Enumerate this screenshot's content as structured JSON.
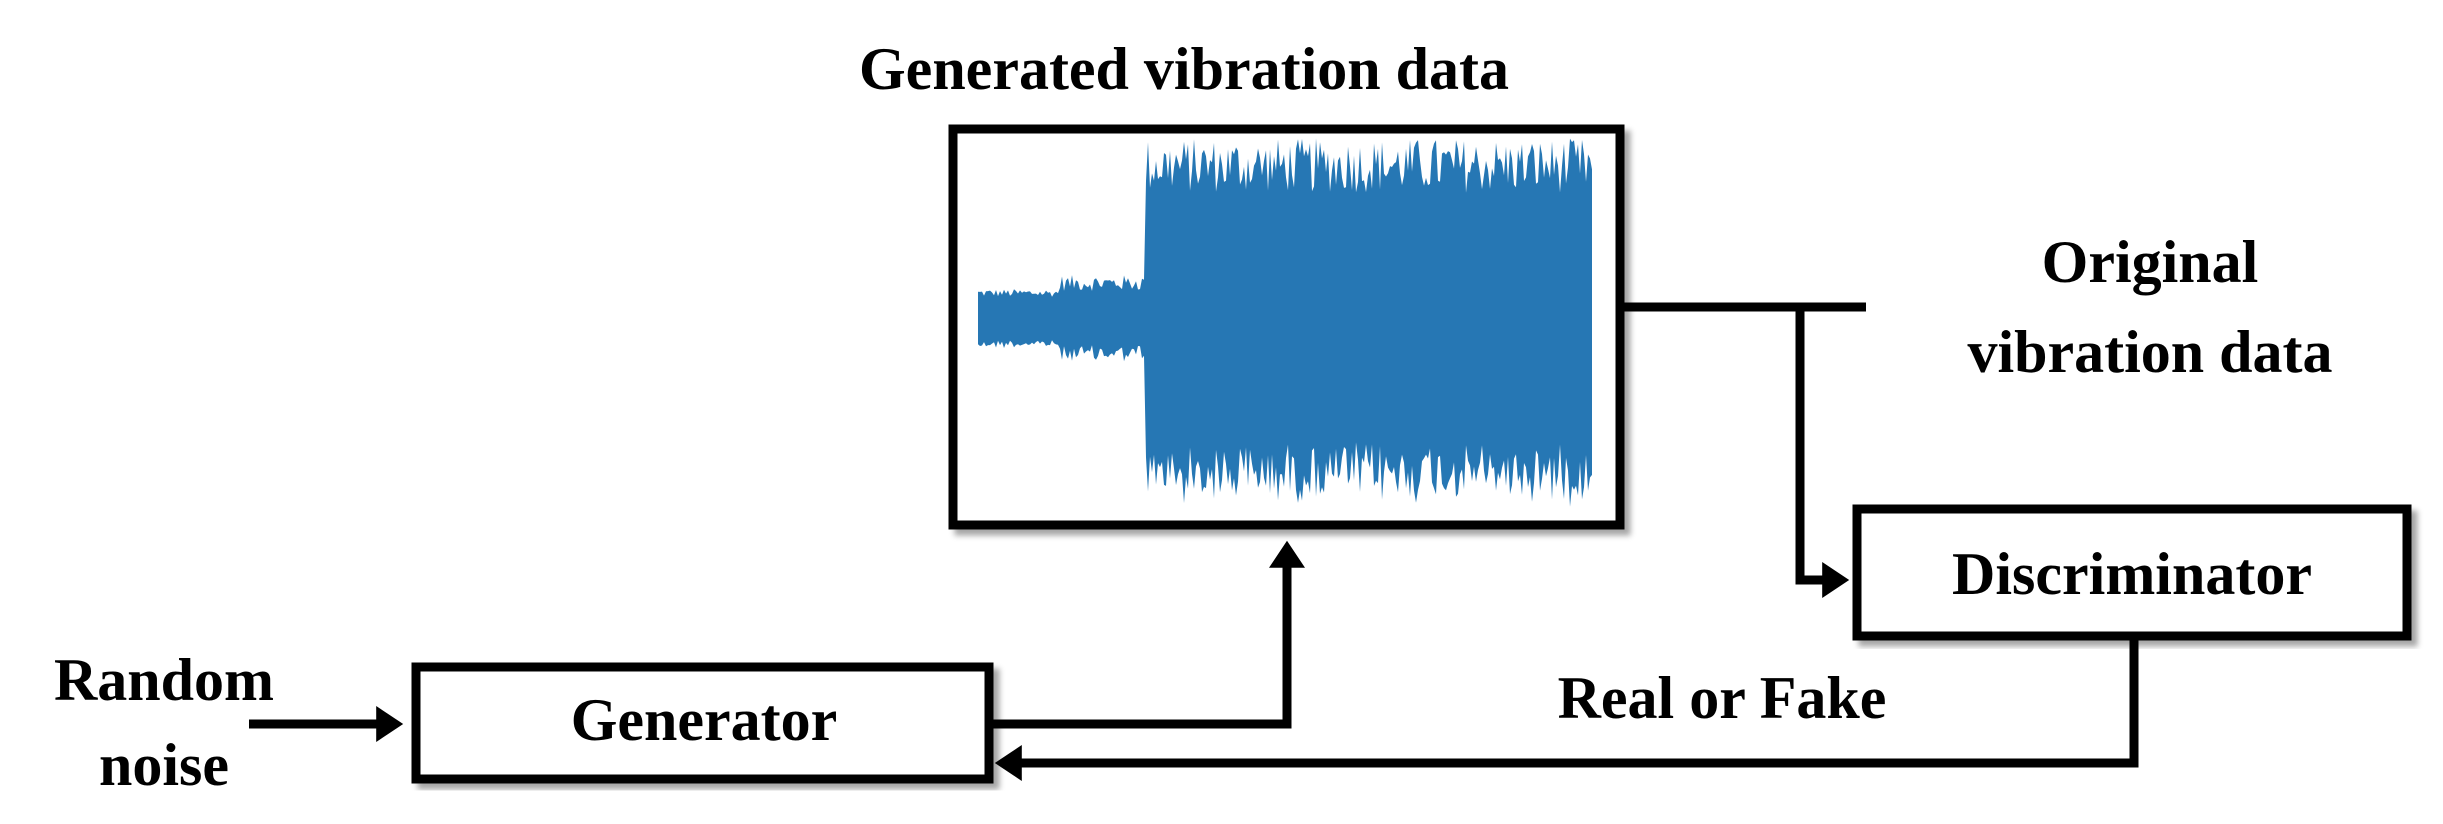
{
  "title": "Generated vibration data",
  "original_data": {
    "lines": [
      "Original",
      "vibration data"
    ]
  },
  "discriminator": {
    "label": "Discriminator"
  },
  "generator": {
    "label": "Generator"
  },
  "random_noise": {
    "lines": [
      "Random",
      "noise"
    ]
  },
  "feedback": {
    "label": "Real or Fake"
  }
}
